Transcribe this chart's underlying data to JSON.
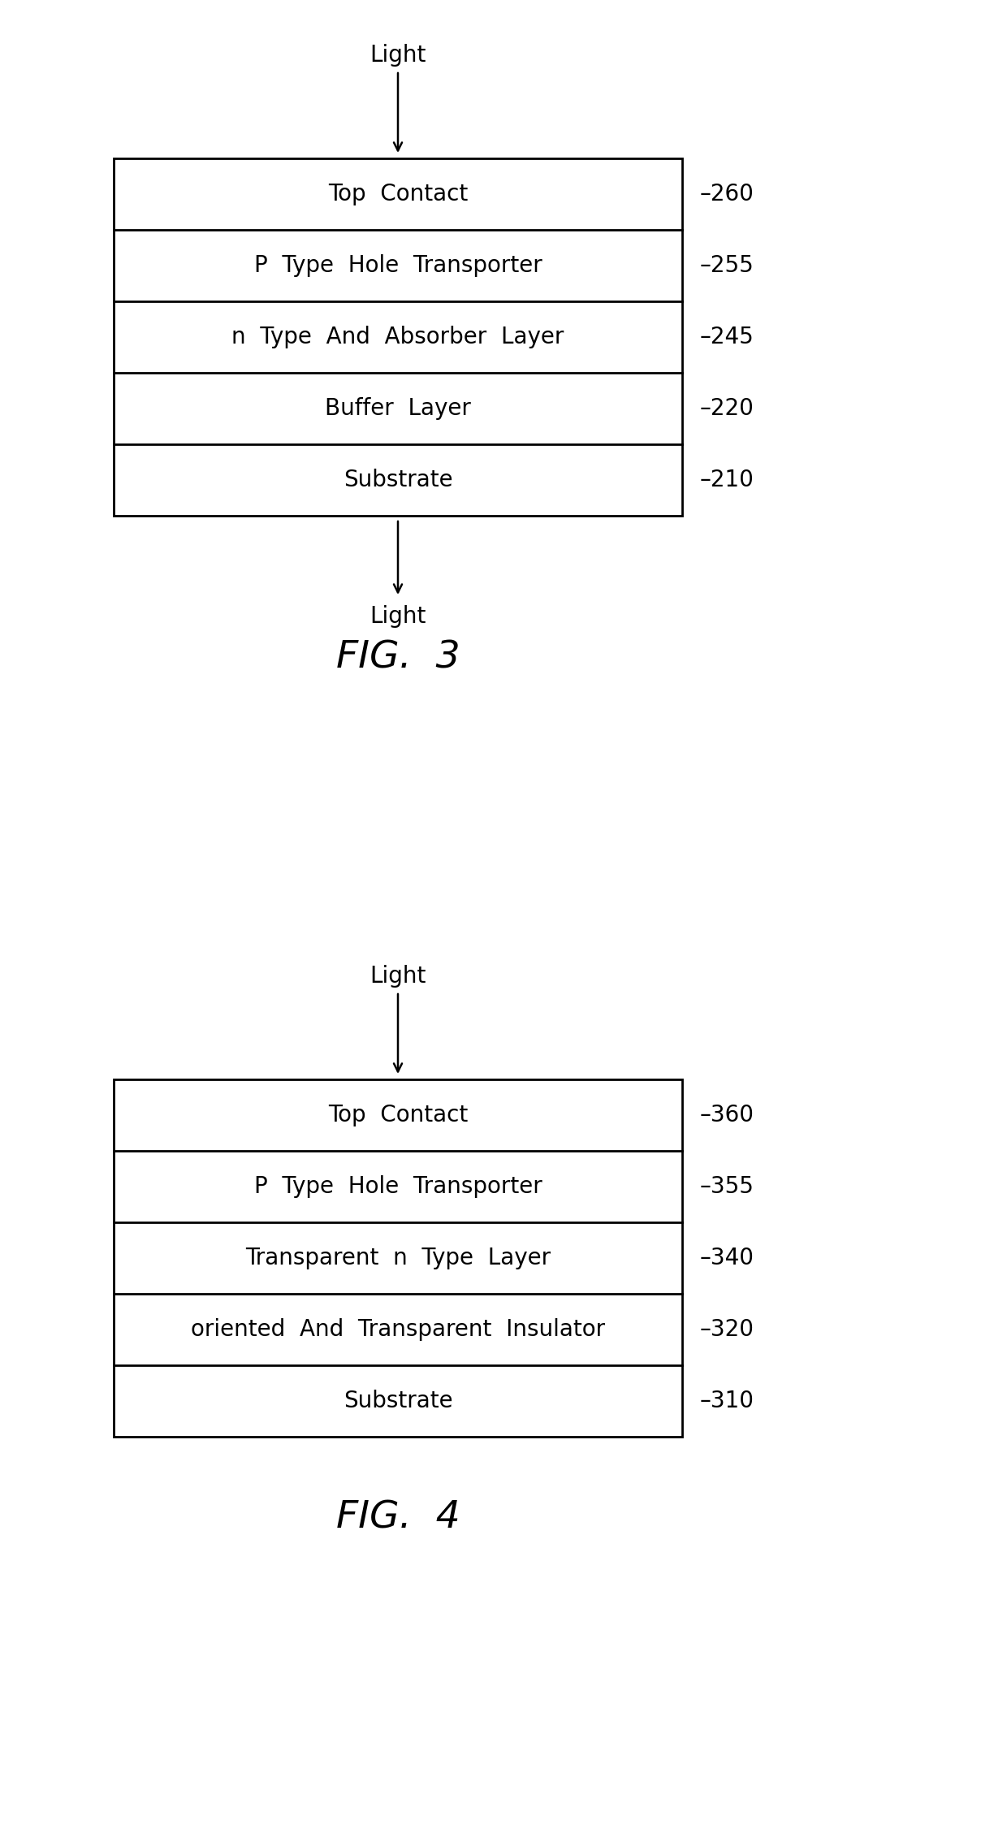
{
  "fig3": {
    "title": "FIG.  3",
    "light_top": "Light",
    "light_bottom": "Light",
    "has_bottom_light": true,
    "layers": [
      {
        "label": "Top  Contact",
        "ref": "260"
      },
      {
        "label": "P  Type  Hole  Transporter",
        "ref": "255"
      },
      {
        "label": "n  Type  And  Absorber  Layer",
        "ref": "245"
      },
      {
        "label": "Buffer  Layer",
        "ref": "220"
      },
      {
        "label": "Substrate",
        "ref": "210"
      }
    ]
  },
  "fig4": {
    "title": "FIG.  4",
    "light_top": "Light",
    "has_bottom_light": false,
    "layers": [
      {
        "label": "Top  Contact",
        "ref": "360"
      },
      {
        "label": "P  Type  Hole  Transporter",
        "ref": "355"
      },
      {
        "label": "Transparent  n  Type  Layer",
        "ref": "340"
      },
      {
        "label": "oriented  And  Transparent  Insulator",
        "ref": "320"
      },
      {
        "label": "Substrate",
        "ref": "310"
      }
    ]
  },
  "bg_color": "#ffffff",
  "box_color": "#000000",
  "text_color": "#000000",
  "label_fontsize": 20,
  "ref_fontsize": 20,
  "title_fontsize": 34,
  "light_fontsize": 20
}
